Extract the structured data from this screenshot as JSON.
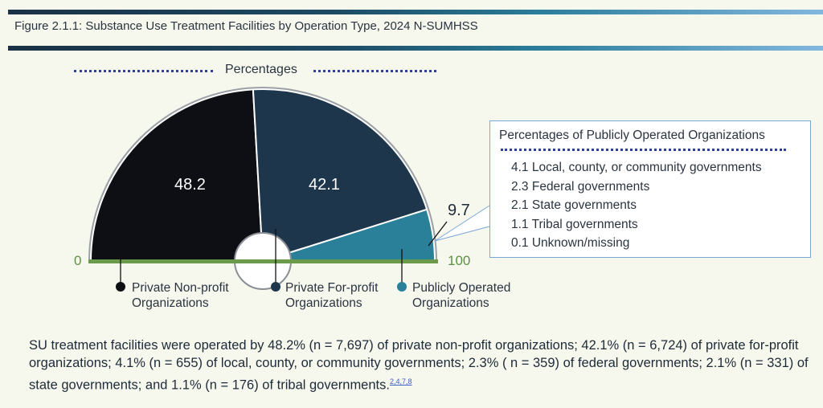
{
  "figure_title": "Figure 2.1.1: Substance Use Treatment Facilities by Operation Type, 2024 N-SUMHSS",
  "chart_data": {
    "type": "pie",
    "subtype": "semicircle-gauge",
    "title": "Percentages",
    "range": [
      0,
      100
    ],
    "axis_min_label": "0",
    "axis_max_label": "100",
    "categories": [
      "Private Non-profit Organizations",
      "Private For-profit Organizations",
      "Publicly Operated Organizations"
    ],
    "values": [
      48.2,
      42.1,
      9.7
    ],
    "value_labels": [
      "48.2",
      "42.1",
      "9.7"
    ],
    "colors": [
      "#0d0f14",
      "#1d364b",
      "#2a7f99"
    ],
    "legend": [
      {
        "line1": "Private Non-profit",
        "line2": "Organizations"
      },
      {
        "line1": "Private For-profit",
        "line2": "Organizations"
      },
      {
        "line1": "Publicly Operated",
        "line2": "Organizations"
      }
    ],
    "baseline_color": "#6a9a4a",
    "breakdown": {
      "title": "Percentages of Publicly Operated Organizations",
      "items": [
        {
          "value": 4.1,
          "label": "4.1 Local, county, or community governments"
        },
        {
          "value": 2.3,
          "label": "2.3 Federal governments"
        },
        {
          "value": 2.1,
          "label": "2.1 State governments"
        },
        {
          "value": 1.1,
          "label": "1.1 Tribal governments"
        },
        {
          "value": 0.1,
          "label": "0.1 Unknown/missing"
        }
      ]
    }
  },
  "body_text": "SU treatment facilities were operated by 48.2% (n = 7,697) of private non-profit organizations; 42.1% (n = 6,724) of private for-profit organizations; 4.1% (n = 655) of local, county, or community governments; 2.3% ( n = 359) of federal governments; 2.1% (n = 331) of state governments; and 1.1% (n = 176) of tribal governments.",
  "citation_refs": "2,4,7,8"
}
